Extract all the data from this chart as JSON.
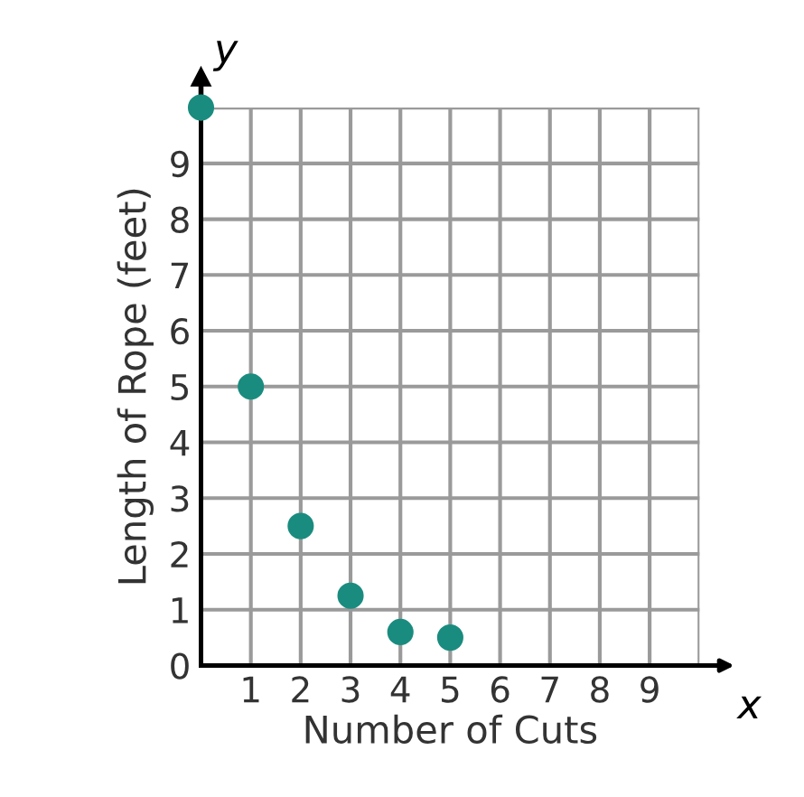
{
  "chart_data": {
    "type": "scatter",
    "xlabel": "Number of Cuts",
    "ylabel": "Length of Rope (feet)",
    "annotations": [
      "x",
      "y"
    ],
    "x": [
      0,
      1,
      2,
      3,
      4,
      5
    ],
    "series": [
      {
        "color": "#1a8c7f",
        "values": [
          10,
          5,
          2.5,
          1.25,
          0.6,
          0.5
        ]
      }
    ],
    "xlim": [
      0,
      10
    ],
    "ylim": [
      0,
      10
    ],
    "xticks": [
      {
        "value": 0,
        "label": null
      },
      1,
      2,
      3,
      4,
      5,
      6,
      7,
      8,
      9,
      {
        "value": 10,
        "label": null
      }
    ],
    "yticks": [
      0,
      1,
      2,
      3,
      4,
      5,
      6,
      7,
      8,
      9,
      {
        "value": 10,
        "label": null
      }
    ],
    "grid": true,
    "marker": "circle"
  }
}
